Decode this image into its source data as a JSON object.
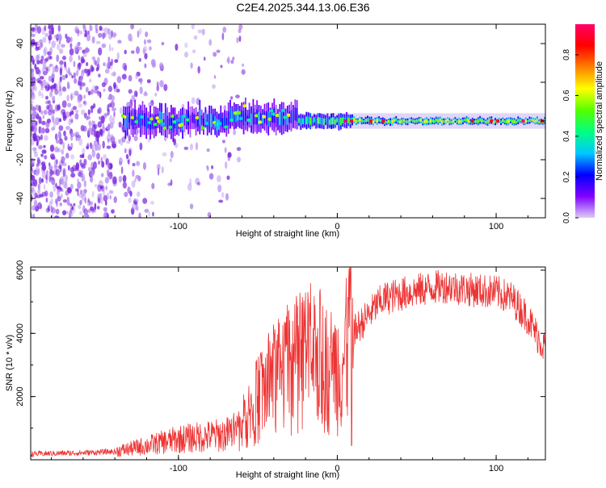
{
  "title": "C2E4.2025.344.13.06.E36",
  "colors": {
    "snr_line": "#ee3333",
    "axis": "#000000",
    "scatter_base": "#b48cf0",
    "scatter_mid": "#7722dd"
  },
  "chart_data": [
    {
      "type": "heatmap",
      "title": "C2E4.2025.344.13.06.E36",
      "xlabel": "Height of straight line (km)",
      "ylabel": "Frequency (Hz)",
      "xlim": [
        -193,
        131
      ],
      "ylim": [
        -50,
        50
      ],
      "xticks": [
        -100,
        0,
        100
      ],
      "xtick_labels": [
        "-100",
        "0",
        "100"
      ],
      "yticks": [
        -40,
        -20,
        0,
        20,
        40
      ],
      "ytick_labels": [
        "-40",
        "-20",
        "0",
        "20",
        "40"
      ],
      "colorbar": {
        "label": "Normalized spectral amplitude",
        "range": [
          0,
          0.95
        ],
        "ticks": [
          0.0,
          0.2,
          0.4,
          0.6,
          0.8
        ],
        "tick_labels": [
          "0.0",
          "0.2",
          "0.4",
          "0.6",
          "0.8"
        ],
        "stops": [
          "#dcccf4",
          "#8000ff",
          "#0000ff",
          "#00c8ff",
          "#00ff80",
          "#55ff00",
          "#ffff00",
          "#ff8000",
          "#ff0000",
          "#ff0066"
        ]
      },
      "features": [
        {
          "name": "main-tone",
          "x_range": [
            -135,
            131
          ],
          "freq_hz": 0,
          "amplitude_range": [
            0.2,
            0.95
          ]
        },
        {
          "name": "broadband-noise",
          "x_range": [
            -193,
            -62
          ],
          "freq_range_hz": [
            -50,
            50
          ],
          "amplitude_range": [
            0.0,
            0.3
          ]
        }
      ]
    },
    {
      "type": "line",
      "xlabel": "Height of straight line (km)",
      "ylabel": "SNR (10 * v/v)",
      "xlim": [
        -193,
        131
      ],
      "ylim": [
        0,
        6100
      ],
      "xticks": [
        -100,
        0,
        100
      ],
      "xtick_labels": [
        "-100",
        "0",
        "100"
      ],
      "yticks": [
        2000,
        4000,
        6000
      ],
      "ytick_labels": [
        "2000",
        "4000",
        "6000"
      ],
      "series": [
        {
          "name": "SNR",
          "x": [
            -193,
            -180,
            -160,
            -140,
            -130,
            -120,
            -110,
            -100,
            -90,
            -80,
            -70,
            -65,
            -60,
            -55,
            -50,
            -45,
            -40,
            -35,
            -30,
            -25,
            -20,
            -15,
            -10,
            -5,
            0,
            5,
            8,
            10,
            15,
            20,
            25,
            30,
            40,
            50,
            60,
            70,
            80,
            90,
            100,
            110,
            120,
            125,
            131
          ],
          "y": [
            180,
            200,
            220,
            260,
            350,
            450,
            550,
            650,
            700,
            750,
            800,
            900,
            1100,
            1500,
            1900,
            2300,
            2500,
            2700,
            2900,
            3100,
            3300,
            3400,
            3100,
            2800,
            2900,
            3300,
            3700,
            4000,
            4300,
            4600,
            4900,
            5100,
            5250,
            5350,
            5450,
            5500,
            5400,
            5350,
            5300,
            5100,
            4500,
            4000,
            3500
          ]
        }
      ],
      "annotations": [
        {
          "name": "spike",
          "x": 8,
          "y": 6100
        },
        {
          "name": "dip",
          "x": 9,
          "y": 450
        }
      ]
    }
  ]
}
